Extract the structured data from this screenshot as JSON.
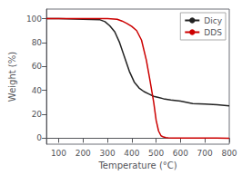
{
  "chart_data": {
    "type": "line",
    "xlabel": "Temperature (°C)",
    "ylabel": "Weight (%)",
    "xlim": [
      50,
      800
    ],
    "ylim": [
      -5,
      108
    ],
    "xticks": [
      100,
      200,
      300,
      400,
      500,
      600,
      700,
      800
    ],
    "yticks": [
      0,
      20,
      40,
      60,
      80,
      100
    ],
    "grid": false,
    "legend": "upper right",
    "series": [
      {
        "name": "Dicy",
        "color": "#222222",
        "x": [
          50,
          100,
          200,
          270,
          290,
          310,
          330,
          350,
          370,
          390,
          410,
          430,
          450,
          470,
          490,
          510,
          530,
          560,
          600,
          650,
          700,
          750,
          800
        ],
        "values": [
          100,
          100,
          99.5,
          99,
          97.5,
          94,
          89,
          80,
          68,
          56,
          47,
          42,
          39,
          37,
          35,
          34,
          33,
          32,
          31,
          29,
          28.5,
          28,
          27
        ]
      },
      {
        "name": "DDS",
        "color": "#cc0000",
        "x": [
          50,
          100,
          200,
          300,
          340,
          360,
          380,
          400,
          420,
          440,
          460,
          475,
          490,
          500,
          510,
          520,
          530,
          540,
          550,
          570,
          600,
          650,
          700,
          750,
          800
        ],
        "values": [
          100,
          100,
          100,
          100,
          99.5,
          98,
          96,
          93.5,
          90,
          82,
          65,
          48,
          30,
          15,
          6,
          2,
          1,
          0.5,
          0.3,
          0.2,
          0.1,
          0.1,
          0.1,
          0.1,
          0
        ]
      }
    ]
  }
}
